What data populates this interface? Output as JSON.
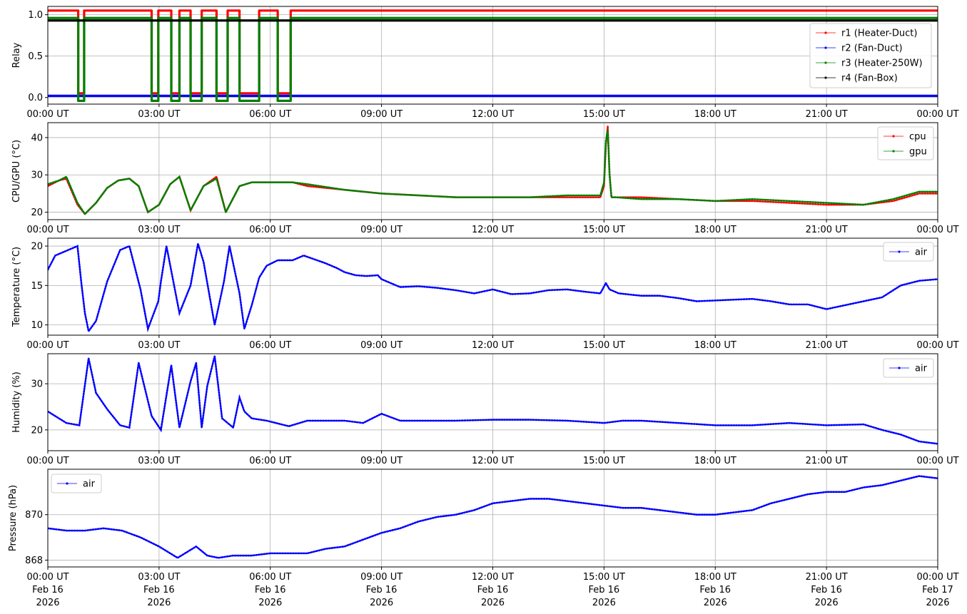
{
  "chart_data": [
    {
      "type": "line",
      "ylabel": "Relay",
      "ylim": [
        -0.08,
        1.1
      ],
      "yticks": [
        0.0,
        0.5,
        1.0
      ],
      "ytick_labels": [
        "0.0",
        "0.5",
        "1.0"
      ],
      "grid": true,
      "legend_position": "right",
      "series": [
        {
          "name": "r1 (Heater-Duct)",
          "color": "#ff0000",
          "x": [
            0,
            0.82,
            0.82,
            0.98,
            0.98,
            2.8,
            2.8,
            2.98,
            2.98,
            3.33,
            3.33,
            3.55,
            3.55,
            3.85,
            3.85,
            4.15,
            4.15,
            4.55,
            4.55,
            4.85,
            4.85,
            5.17,
            5.17,
            5.7,
            5.7,
            6.2,
            6.2,
            6.55,
            6.55,
            24
          ],
          "y": [
            1.05,
            1.05,
            0.05,
            0.05,
            1.05,
            1.05,
            0.05,
            0.05,
            1.05,
            1.05,
            0.05,
            0.05,
            1.05,
            1.05,
            0.05,
            0.05,
            1.05,
            1.05,
            0.05,
            0.05,
            1.05,
            1.05,
            0.05,
            0.05,
            1.05,
            1.05,
            0.05,
            0.05,
            1.05,
            1.05
          ]
        },
        {
          "name": "r2 (Fan-Duct)",
          "color": "#0000ff",
          "x": [
            0,
            24
          ],
          "y": [
            0.02,
            0.02
          ]
        },
        {
          "name": "r3 (Heater-250W)",
          "color": "#008000",
          "x": [
            0,
            0.82,
            0.82,
            0.98,
            0.98,
            2.8,
            2.8,
            2.98,
            2.98,
            3.33,
            3.33,
            3.55,
            3.55,
            3.85,
            3.85,
            4.15,
            4.15,
            4.55,
            4.55,
            4.85,
            4.85,
            5.17,
            5.17,
            5.7,
            5.7,
            6.2,
            6.2,
            6.55,
            6.55,
            24
          ],
          "y": [
            0.96,
            0.96,
            -0.04,
            -0.04,
            0.96,
            0.96,
            -0.04,
            -0.04,
            0.96,
            0.96,
            -0.04,
            -0.04,
            0.96,
            0.96,
            -0.04,
            -0.04,
            0.96,
            0.96,
            -0.04,
            -0.04,
            0.96,
            0.96,
            -0.04,
            -0.04,
            0.96,
            0.96,
            -0.04,
            -0.04,
            0.96,
            0.96
          ]
        },
        {
          "name": "r4 (Fan-Box)",
          "color": "#000000",
          "x": [
            0,
            24
          ],
          "y": [
            0.93,
            0.93
          ]
        }
      ]
    },
    {
      "type": "line",
      "ylabel": "CPU/GPU (°C)",
      "ylim": [
        18,
        44
      ],
      "yticks": [
        20,
        30,
        40
      ],
      "ytick_labels": [
        "20",
        "30",
        "40"
      ],
      "grid": true,
      "legend_position": "top-right",
      "series": [
        {
          "name": "cpu",
          "color": "#ff0000",
          "x": [
            0,
            0.3,
            0.5,
            0.8,
            1.0,
            1.3,
            1.6,
            1.9,
            2.2,
            2.45,
            2.7,
            3.0,
            3.3,
            3.55,
            3.85,
            4.2,
            4.55,
            4.8,
            5.17,
            5.5,
            5.8,
            6.2,
            6.6,
            7.0,
            8.0,
            9.0,
            10.0,
            11.0,
            12.0,
            13.0,
            14.0,
            14.9,
            15.0,
            15.05,
            15.1,
            15.15,
            15.2,
            15.3,
            16.0,
            17.0,
            18.0,
            19.0,
            20.0,
            21.0,
            22.0,
            22.8,
            23.5,
            24.0
          ],
          "y": [
            27,
            28.5,
            29,
            22,
            19.5,
            22.5,
            26.5,
            28.5,
            29,
            27,
            20,
            22,
            27.5,
            29.5,
            20.5,
            27,
            29.5,
            20,
            27,
            28,
            28,
            28,
            28,
            27,
            26,
            25,
            24.5,
            24,
            24,
            24,
            24,
            24,
            27,
            38,
            43,
            30,
            24,
            24,
            24,
            23.5,
            23,
            23,
            22.5,
            22,
            22,
            23,
            25,
            25
          ]
        },
        {
          "name": "gpu",
          "color": "#008000",
          "x": [
            0,
            0.3,
            0.5,
            0.8,
            1.0,
            1.3,
            1.6,
            1.9,
            2.2,
            2.45,
            2.7,
            3.0,
            3.3,
            3.55,
            3.85,
            4.2,
            4.55,
            4.8,
            5.17,
            5.5,
            5.8,
            6.2,
            6.6,
            7.0,
            8.0,
            9.0,
            10.0,
            11.0,
            12.0,
            13.0,
            14.0,
            14.9,
            15.0,
            15.05,
            15.1,
            15.15,
            15.2,
            15.3,
            16.0,
            17.0,
            18.0,
            19.0,
            20.0,
            21.0,
            22.0,
            22.8,
            23.5,
            24.0
          ],
          "y": [
            27.5,
            28.5,
            29.5,
            22.5,
            19.5,
            22.5,
            26.5,
            28.5,
            29,
            27,
            20,
            22,
            27.5,
            29.5,
            20.5,
            27,
            29,
            20,
            27,
            28,
            28,
            28,
            28,
            27.5,
            26,
            25,
            24.5,
            24,
            24,
            24,
            24.5,
            24.5,
            28,
            39,
            42,
            30,
            24,
            24,
            23.5,
            23.5,
            23,
            23.5,
            23,
            22.5,
            22,
            23.5,
            25.5,
            25.5
          ]
        }
      ]
    },
    {
      "type": "line",
      "ylabel": "Temperature (°C)",
      "ylim": [
        8.7,
        21
      ],
      "yticks": [
        10,
        15,
        20
      ],
      "ytick_labels": [
        "10",
        "15",
        "20"
      ],
      "grid": true,
      "legend_position": "top-right",
      "series": [
        {
          "name": "air",
          "color": "#0000ff",
          "x": [
            0,
            0.2,
            0.45,
            0.8,
            0.9,
            1.0,
            1.1,
            1.3,
            1.6,
            1.95,
            2.2,
            2.5,
            2.7,
            2.98,
            3.05,
            3.2,
            3.55,
            3.85,
            4.05,
            4.2,
            4.5,
            4.75,
            4.9,
            5.17,
            5.3,
            5.5,
            5.7,
            5.9,
            6.2,
            6.6,
            6.9,
            7.2,
            7.5,
            7.8,
            8.0,
            8.3,
            8.6,
            8.9,
            9.0,
            9.5,
            10.0,
            10.5,
            11.0,
            11.5,
            12.0,
            12.5,
            13.0,
            13.5,
            14.0,
            14.5,
            14.9,
            15.05,
            15.15,
            15.4,
            16.0,
            16.5,
            17.0,
            17.5,
            18.0,
            18.5,
            19.0,
            19.5,
            20.0,
            20.5,
            21.0,
            21.5,
            22.0,
            22.5,
            23.0,
            23.5,
            24.0
          ],
          "y": [
            17,
            18.8,
            19.3,
            20,
            15.5,
            11.5,
            9.2,
            10.5,
            15.5,
            19.5,
            20,
            14.5,
            9.5,
            13,
            15.5,
            20,
            11.5,
            15,
            20.3,
            18,
            10,
            15.5,
            20,
            14,
            9.5,
            12.5,
            16,
            17.5,
            18.2,
            18.2,
            18.8,
            18.3,
            17.8,
            17.2,
            16.7,
            16.3,
            16.2,
            16.3,
            15.8,
            14.8,
            14.9,
            14.7,
            14.4,
            14.0,
            14.5,
            13.9,
            14.0,
            14.4,
            14.5,
            14.2,
            14.0,
            15.3,
            14.5,
            14.0,
            13.7,
            13.7,
            13.4,
            13.0,
            13.1,
            13.2,
            13.3,
            13.0,
            12.6,
            12.6,
            12.0,
            12.5,
            13.0,
            13.5,
            15.0,
            15.6,
            15.8
          ]
        }
      ]
    },
    {
      "type": "line",
      "ylabel": "Humidity (%)",
      "ylim": [
        15.5,
        36.5
      ],
      "yticks": [
        20,
        30
      ],
      "ytick_labels": [
        "20",
        "30"
      ],
      "grid": true,
      "legend_position": "top-right",
      "series": [
        {
          "name": "air",
          "color": "#0000ff",
          "x": [
            0,
            0.5,
            0.85,
            1.1,
            1.3,
            1.6,
            1.95,
            2.2,
            2.45,
            2.8,
            3.05,
            3.33,
            3.55,
            3.85,
            4.0,
            4.15,
            4.3,
            4.5,
            4.7,
            5.0,
            5.17,
            5.3,
            5.5,
            5.9,
            6.5,
            7.0,
            8.0,
            8.5,
            9.0,
            9.5,
            10.0,
            11.0,
            12.0,
            13.0,
            14.0,
            15.0,
            15.5,
            16.0,
            17.0,
            18.0,
            19.0,
            20.0,
            21.0,
            22.0,
            22.5,
            23.0,
            23.5,
            24.0
          ],
          "y": [
            24,
            21.5,
            21,
            35.5,
            28,
            24.5,
            21,
            20.5,
            34.5,
            23,
            20,
            34,
            20.5,
            30.5,
            34.5,
            20.5,
            29.5,
            36,
            22.5,
            20.5,
            27,
            24,
            22.5,
            22,
            20.8,
            22,
            22,
            21.5,
            23.5,
            22,
            22,
            22,
            22.2,
            22.2,
            22,
            21.5,
            22,
            22,
            21.5,
            21,
            21,
            21.5,
            21,
            21.2,
            20,
            19,
            17.5,
            17
          ]
        }
      ]
    },
    {
      "type": "line",
      "ylabel": "Pressure (hPa)",
      "ylim": [
        867.7,
        872.0
      ],
      "yticks": [
        868,
        870
      ],
      "ytick_labels": [
        "868",
        "870"
      ],
      "grid": true,
      "legend_position": "top-left",
      "series": [
        {
          "name": "air",
          "color": "#0000ff",
          "x": [
            0,
            0.5,
            1.0,
            1.5,
            2.0,
            2.5,
            3.0,
            3.5,
            4.0,
            4.3,
            4.6,
            5.0,
            5.5,
            6.0,
            6.5,
            7.0,
            7.5,
            8.0,
            8.5,
            9.0,
            9.5,
            10.0,
            10.5,
            11.0,
            11.5,
            12.0,
            12.5,
            13.0,
            13.5,
            14.0,
            14.5,
            15.0,
            15.5,
            16.0,
            16.5,
            17.0,
            17.5,
            18.0,
            18.5,
            19.0,
            19.5,
            20.0,
            20.5,
            21.0,
            21.5,
            22.0,
            22.5,
            23.0,
            23.5,
            24.0
          ],
          "y": [
            869.4,
            869.3,
            869.3,
            869.4,
            869.3,
            869.0,
            868.6,
            868.1,
            868.6,
            868.2,
            868.1,
            868.2,
            868.2,
            868.3,
            868.3,
            868.3,
            868.5,
            868.6,
            868.9,
            869.2,
            869.4,
            869.7,
            869.9,
            870.0,
            870.2,
            870.5,
            870.6,
            870.7,
            870.7,
            870.6,
            870.5,
            870.4,
            870.3,
            870.3,
            870.2,
            870.1,
            870.0,
            870.0,
            870.1,
            870.2,
            870.5,
            870.7,
            870.9,
            871.0,
            871.0,
            871.2,
            871.3,
            871.5,
            871.7,
            871.6
          ]
        }
      ]
    }
  ],
  "xaxis": {
    "xlim": [
      0,
      24
    ],
    "ticks": [
      0,
      3,
      6,
      9,
      12,
      15,
      18,
      21,
      24
    ],
    "tick_labels": [
      "00:00 UT",
      "03:00 UT",
      "06:00 UT",
      "09:00 UT",
      "12:00 UT",
      "15:00 UT",
      "18:00 UT",
      "21:00 UT",
      "00:00 UT"
    ],
    "date_labels": [
      "Feb 16",
      "Feb 16",
      "Feb 16",
      "Feb 16",
      "Feb 16",
      "Feb 16",
      "Feb 16",
      "Feb 16",
      "Feb 17"
    ],
    "year_labels": [
      "2026",
      "2026",
      "2026",
      "2026",
      "2026",
      "2026",
      "2026",
      "2026",
      "2026"
    ]
  }
}
